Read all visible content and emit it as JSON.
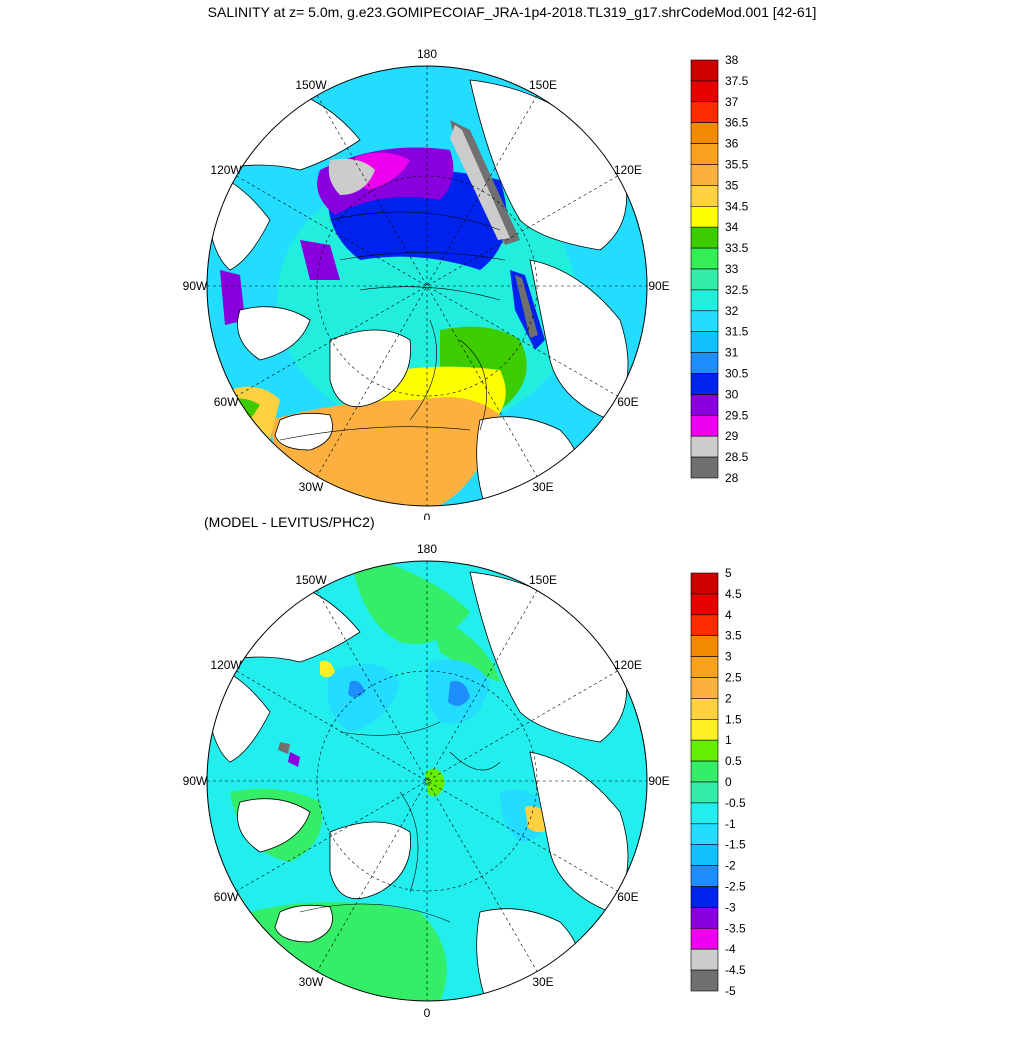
{
  "title": "SALINITY at z=   5.0m, g.e23.GOMIPECOIAF_JRA-1p4-2018.TL319_g17.shrCodeMod.001 [42-61]",
  "subtitle": "(MODEL - LEVITUS/PHC2)",
  "longitude_labels": [
    "180",
    "150E",
    "120E",
    "90E",
    "60E",
    "30E",
    "0",
    "30W",
    "60W",
    "90W",
    "120W",
    "150W"
  ],
  "colors": {
    "land": "#ffffff",
    "coast": "#000000",
    "graticule": "#000000"
  },
  "panels": [
    {
      "name": "salinity",
      "colorbar_labels": [
        "38",
        "37.5",
        "37",
        "36.5",
        "36",
        "35.5",
        "35",
        "34.5",
        "34",
        "33.5",
        "33",
        "32.5",
        "32",
        "31.5",
        "31",
        "30.5",
        "30",
        "29.5",
        "29",
        "28.5",
        "28"
      ],
      "colorbar_colors": [
        "#cc0000",
        "#e60000",
        "#ff2a00",
        "#f28a00",
        "#f8a020",
        "#fbb040",
        "#ffd040",
        "#ffff00",
        "#3ccc00",
        "#33ee55",
        "#33eeaa",
        "#22eedd",
        "#22ddff",
        "#11c0ff",
        "#1e8eff",
        "#0022ee",
        "#8800dd",
        "#ee00ee",
        "#cccccc",
        "#707070"
      ]
    },
    {
      "name": "difference",
      "colorbar_labels": [
        "5",
        "4.5",
        "4",
        "3.5",
        "3",
        "2.5",
        "2",
        "1.5",
        "1",
        "0.5",
        "0",
        "-0.5",
        "-1",
        "-1.5",
        "-2",
        "-2.5",
        "-3",
        "-3.5",
        "-4",
        "-4.5",
        "-5"
      ],
      "colorbar_colors": [
        "#cc0000",
        "#e60000",
        "#ff2a00",
        "#f28a00",
        "#f8a020",
        "#fbb040",
        "#ffd040",
        "#ffee22",
        "#66ee00",
        "#33ee66",
        "#33eeaa",
        "#22eeee",
        "#22ddff",
        "#11c0ff",
        "#1e8eff",
        "#0022ee",
        "#8800dd",
        "#ee00ee",
        "#cccccc",
        "#707070"
      ]
    }
  ]
}
